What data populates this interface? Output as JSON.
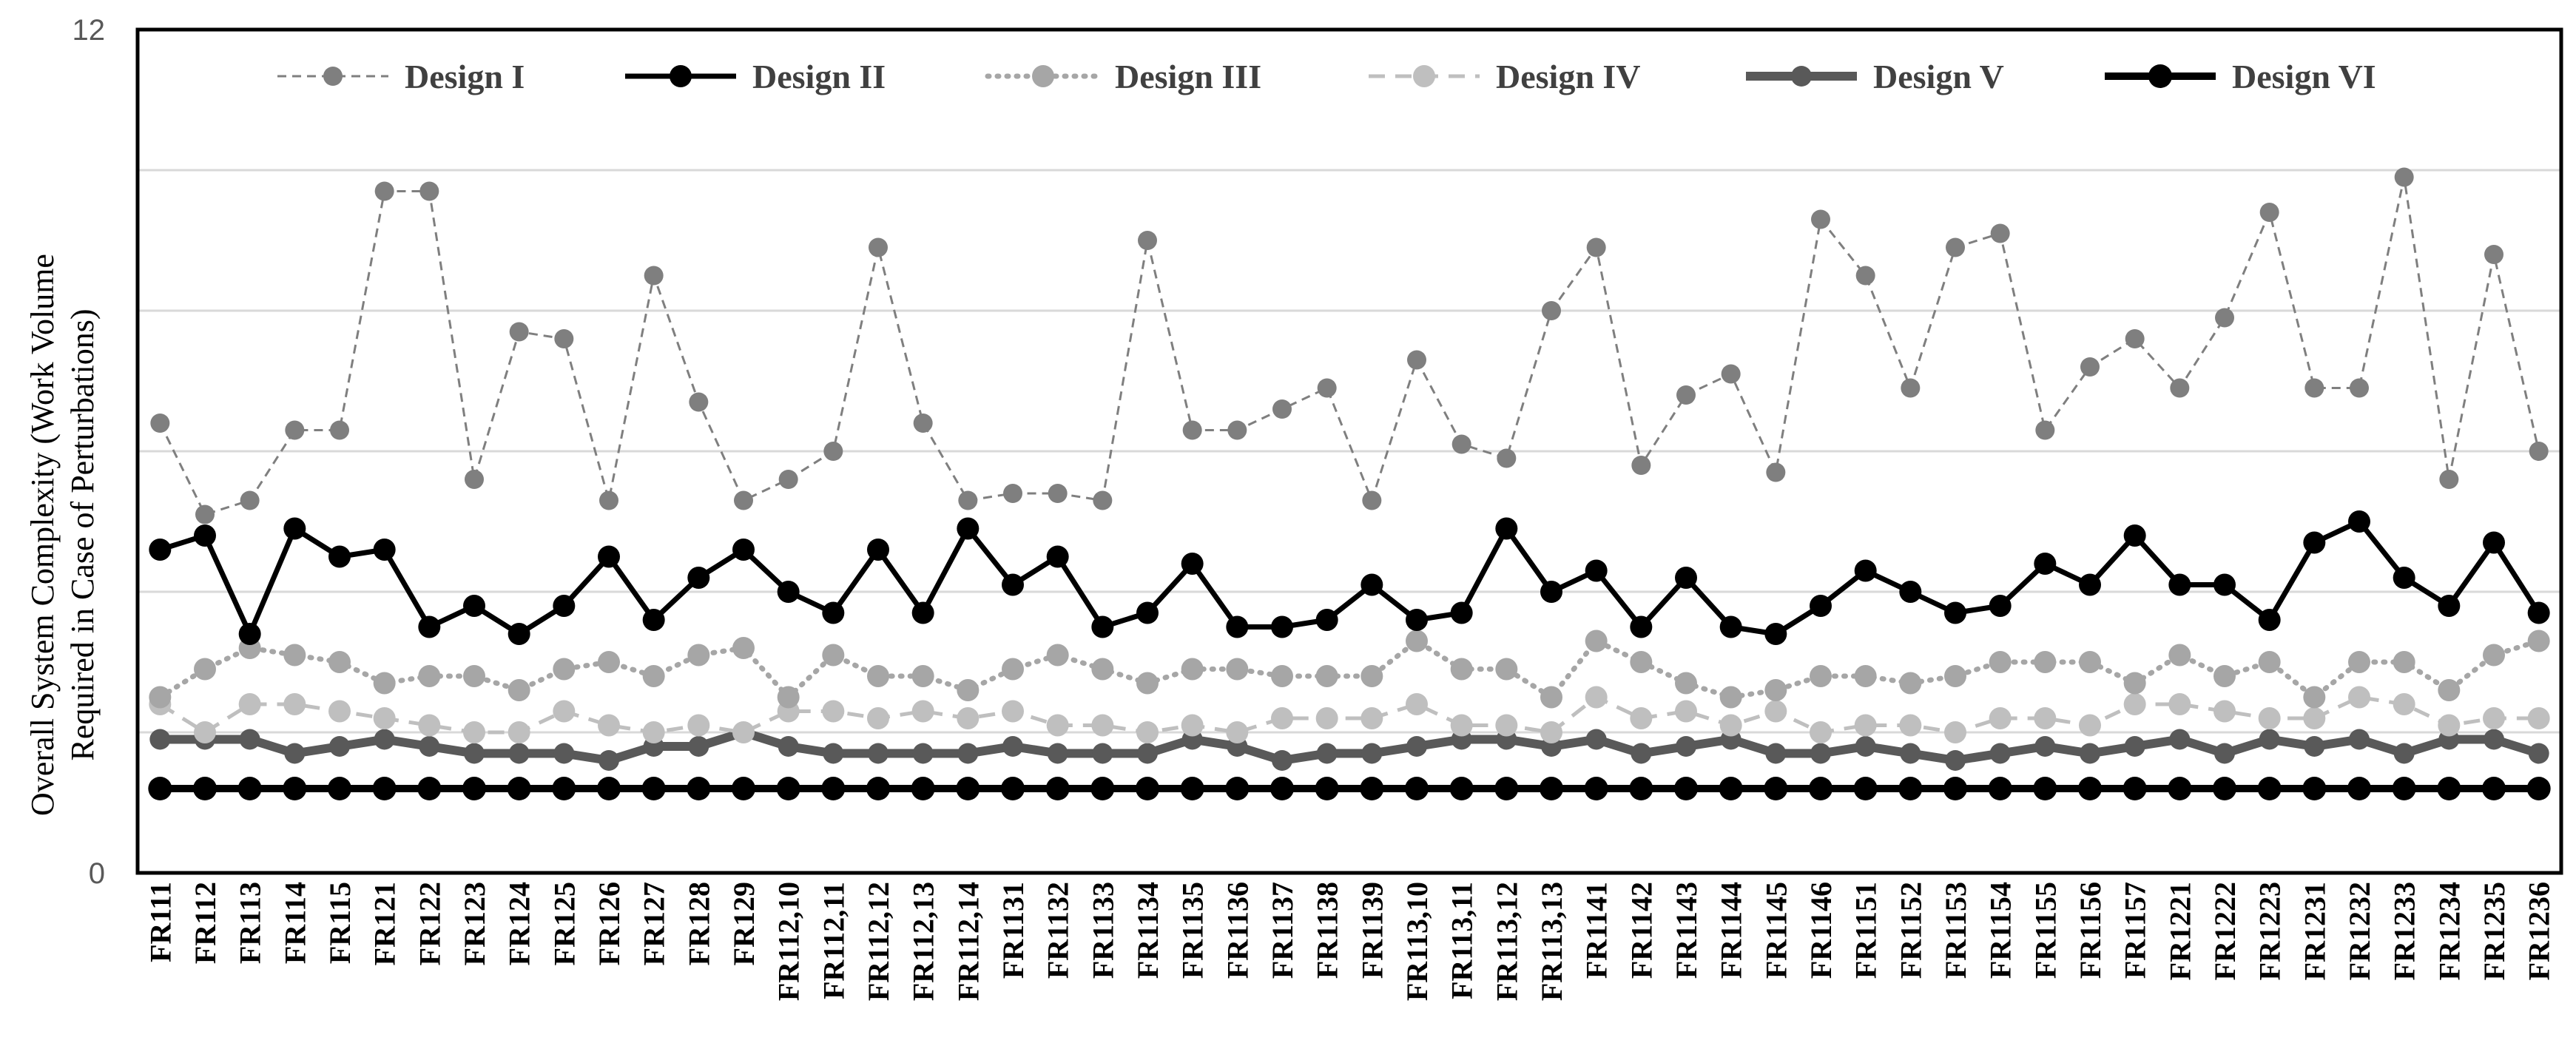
{
  "chart_data": {
    "type": "line",
    "ylabel_lines": [
      "Overall System Complexity (Work Volume",
      "Required in  Case of Perturbations)"
    ],
    "ylim": [
      0,
      12
    ],
    "ytick_labels": [
      "0",
      "12"
    ],
    "grid_values": [
      2,
      4,
      6,
      8,
      10
    ],
    "grid": true,
    "legend_position": "top",
    "categories": [
      "FR111",
      "FR112",
      "FR113",
      "FR114",
      "FR115",
      "FR121",
      "FR122",
      "FR123",
      "FR124",
      "FR125",
      "FR126",
      "FR127",
      "FR128",
      "FR129",
      "FR112,10",
      "FR112,11",
      "FR112,12",
      "FR112,13",
      "FR112,14",
      "FR1131",
      "FR1132",
      "FR1133",
      "FR1134",
      "FR1135",
      "FR1136",
      "FR1137",
      "FR1138",
      "FR1139",
      "FR113,10",
      "FR113,11",
      "FR113,12",
      "FR113,13",
      "FR1141",
      "FR1142",
      "FR1143",
      "FR1144",
      "FR1145",
      "FR1146",
      "FR1151",
      "FR1152",
      "FR1153",
      "FR1154",
      "FR1155",
      "FR1156",
      "FR1157",
      "FR1221",
      "FR1222",
      "FR1223",
      "FR1231",
      "FR1232",
      "FR1233",
      "FR1234",
      "FR1235",
      "FR1236"
    ],
    "series": [
      {
        "name": "Design I",
        "color": "#7f7f7f",
        "style": "dashed",
        "values": [
          6.4,
          5.1,
          5.3,
          6.3,
          6.3,
          9.7,
          9.7,
          5.6,
          7.7,
          7.6,
          5.3,
          8.5,
          6.7,
          5.3,
          5.6,
          6.0,
          8.9,
          6.4,
          5.3,
          5.4,
          5.4,
          5.3,
          9.0,
          6.3,
          6.3,
          6.6,
          6.9,
          5.3,
          7.3,
          6.1,
          5.9,
          8.0,
          8.9,
          5.8,
          6.8,
          7.1,
          5.7,
          9.3,
          8.5,
          6.9,
          8.9,
          9.1,
          6.3,
          7.2,
          7.6,
          6.9,
          7.9,
          9.4,
          6.9,
          6.9,
          9.9,
          5.6,
          8.8,
          6.0
        ]
      },
      {
        "name": "Design II",
        "color": "#000000",
        "style": "solid",
        "values": [
          4.6,
          4.8,
          3.4,
          4.9,
          4.5,
          4.6,
          3.5,
          3.8,
          3.4,
          3.8,
          4.5,
          3.6,
          4.2,
          4.6,
          4.0,
          3.7,
          4.6,
          3.7,
          4.9,
          4.1,
          4.5,
          3.5,
          3.7,
          4.4,
          3.5,
          3.5,
          3.6,
          4.1,
          3.6,
          3.7,
          4.9,
          4.0,
          4.3,
          3.5,
          4.2,
          3.5,
          3.4,
          3.8,
          4.3,
          4.0,
          3.7,
          3.8,
          4.4,
          4.1,
          4.8,
          4.1,
          4.1,
          3.6,
          4.7,
          5.0,
          4.2,
          3.8,
          4.7,
          3.7
        ]
      },
      {
        "name": "Design III",
        "color": "#a6a6a6",
        "style": "dotted",
        "values": [
          2.5,
          2.9,
          3.2,
          3.1,
          3.0,
          2.7,
          2.8,
          2.8,
          2.6,
          2.9,
          3.0,
          2.8,
          3.1,
          3.2,
          2.5,
          3.1,
          2.8,
          2.8,
          2.6,
          2.9,
          3.1,
          2.9,
          2.7,
          2.9,
          2.9,
          2.8,
          2.8,
          2.8,
          3.3,
          2.9,
          2.9,
          2.5,
          3.3,
          3.0,
          2.7,
          2.5,
          2.6,
          2.8,
          2.8,
          2.7,
          2.8,
          3.0,
          3.0,
          3.0,
          2.7,
          3.1,
          2.8,
          3.0,
          2.5,
          3.0,
          3.0,
          2.6,
          3.1,
          3.3
        ]
      },
      {
        "name": "Design IV",
        "color": "#bfbfbf",
        "style": "dashed",
        "values": [
          2.4,
          2.0,
          2.4,
          2.4,
          2.3,
          2.2,
          2.1,
          2.0,
          2.0,
          2.3,
          2.1,
          2.0,
          2.1,
          2.0,
          2.3,
          2.3,
          2.2,
          2.3,
          2.2,
          2.3,
          2.1,
          2.1,
          2.0,
          2.1,
          2.0,
          2.2,
          2.2,
          2.2,
          2.4,
          2.1,
          2.1,
          2.0,
          2.5,
          2.2,
          2.3,
          2.1,
          2.3,
          2.0,
          2.1,
          2.1,
          2.0,
          2.2,
          2.2,
          2.1,
          2.4,
          2.4,
          2.3,
          2.2,
          2.2,
          2.5,
          2.4,
          2.1,
          2.2,
          2.2
        ]
      },
      {
        "name": "Design V",
        "color": "#595959",
        "style": "solid",
        "values": [
          1.9,
          1.9,
          1.9,
          1.7,
          1.8,
          1.9,
          1.8,
          1.7,
          1.7,
          1.7,
          1.6,
          1.8,
          1.8,
          2.0,
          1.8,
          1.7,
          1.7,
          1.7,
          1.7,
          1.8,
          1.7,
          1.7,
          1.7,
          1.9,
          1.8,
          1.6,
          1.7,
          1.7,
          1.8,
          1.9,
          1.9,
          1.8,
          1.9,
          1.7,
          1.8,
          1.9,
          1.7,
          1.7,
          1.8,
          1.7,
          1.6,
          1.7,
          1.8,
          1.7,
          1.8,
          1.9,
          1.7,
          1.9,
          1.8,
          1.9,
          1.7,
          1.9,
          1.9,
          1.7
        ]
      },
      {
        "name": "Design VI",
        "color": "#000000",
        "style": "solid",
        "values": [
          1.2,
          1.2,
          1.2,
          1.2,
          1.2,
          1.2,
          1.2,
          1.2,
          1.2,
          1.2,
          1.2,
          1.2,
          1.2,
          1.2,
          1.2,
          1.2,
          1.2,
          1.2,
          1.2,
          1.2,
          1.2,
          1.2,
          1.2,
          1.2,
          1.2,
          1.2,
          1.2,
          1.2,
          1.2,
          1.2,
          1.2,
          1.2,
          1.2,
          1.2,
          1.2,
          1.2,
          1.2,
          1.2,
          1.2,
          1.2,
          1.2,
          1.2,
          1.2,
          1.2,
          1.2,
          1.2,
          1.2,
          1.2,
          1.2,
          1.2,
          1.2,
          1.2,
          1.2,
          1.2
        ]
      }
    ]
  }
}
